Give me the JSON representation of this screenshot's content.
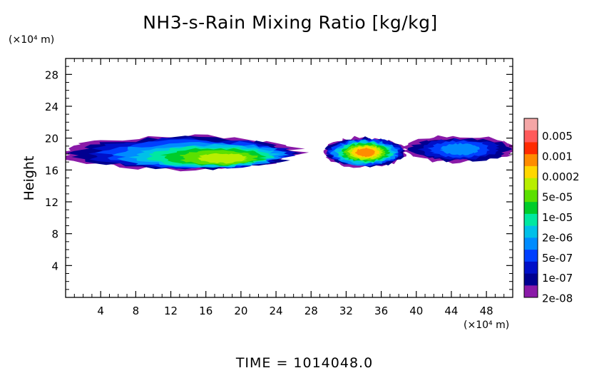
{
  "chart_data": {
    "type": "heatmap",
    "title": "NH3-s-Rain Mixing Ratio [kg/kg]",
    "ylabel": "Height",
    "xlabel": "",
    "x_unit": "(×10⁴ m)",
    "y_unit": "(×10⁴ m)",
    "xlim": [
      0,
      51
    ],
    "ylim": [
      0,
      30
    ],
    "x_ticks": [
      4,
      8,
      12,
      16,
      20,
      24,
      28,
      32,
      36,
      40,
      44,
      48
    ],
    "y_ticks": [
      4,
      8,
      12,
      16,
      20,
      24,
      28
    ],
    "x_tick_labels": [
      "4",
      "8",
      "12",
      "16",
      "20",
      "24",
      "28",
      "32",
      "36",
      "40",
      "44",
      "48"
    ],
    "y_tick_labels": [
      "4",
      "8",
      "12",
      "16",
      "20",
      "24",
      "28"
    ],
    "colorbar": {
      "labels": [
        "0.005",
        "0.001",
        "0.0002",
        "5e-05",
        "1e-05",
        "2e-06",
        "5e-07",
        "1e-07",
        "2e-08"
      ],
      "colors": [
        "#f4a6a6",
        "#ff5a5a",
        "#ff2b00",
        "#ff8c00",
        "#ffd700",
        "#b8ee00",
        "#5be000",
        "#00cc2a",
        "#00e8a0",
        "#00c0e8",
        "#008cff",
        "#0040ff",
        "#0010c8",
        "#000090",
        "#8a1aa8"
      ]
    },
    "series": [
      {
        "x_range": [
          0,
          26.2
        ],
        "y_range": [
          16.4,
          20.0
        ],
        "peak": "0.0002",
        "peak_x": 18.5,
        "peak_y": 17.4
      },
      {
        "x_range": [
          29.8,
          38.5
        ],
        "y_range": [
          16.6,
          19.8
        ],
        "peak": "0.001",
        "peak_x": 34.2,
        "peak_y": 18.2
      },
      {
        "x_range": [
          39.0,
          51.0
        ],
        "y_range": [
          17.2,
          20.0
        ],
        "peak": "2e-06",
        "peak_x": 45.0,
        "peak_y": 18.6
      }
    ],
    "footer": "TIME  =  1014048.0"
  }
}
